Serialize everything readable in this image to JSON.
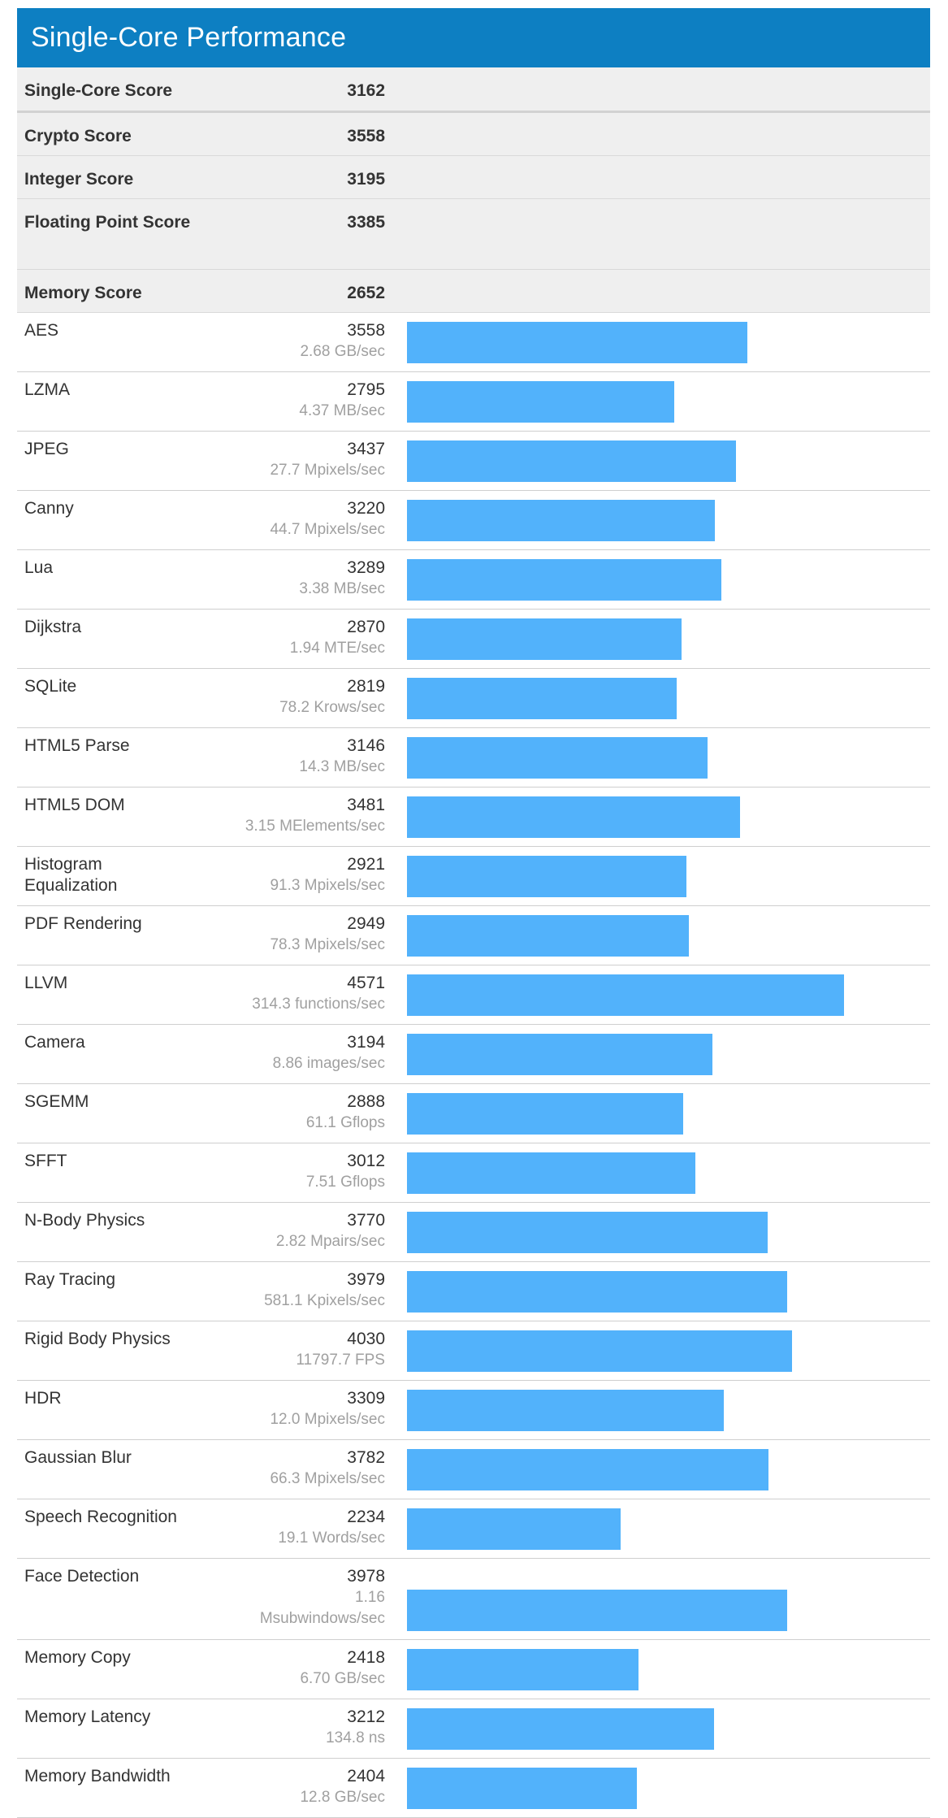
{
  "title": "Single-Core Performance",
  "colors": {
    "header_bg": "#0d7fc2",
    "bar": "#52b2fb",
    "summary_bg": "#efefef"
  },
  "bar_scale_max_score": 7000,
  "summary": [
    {
      "label": "Single-Core Score",
      "score": "3162"
    },
    {
      "label": "Crypto Score",
      "score": "3558"
    },
    {
      "label": "Integer Score",
      "score": "3195"
    },
    {
      "label": "Floating Point Score",
      "score": "3385"
    },
    {
      "label": "Memory Score",
      "score": "2652"
    }
  ],
  "benchmarks": [
    {
      "name": "AES",
      "score": "3558",
      "rate": "2.68 GB/sec"
    },
    {
      "name": "LZMA",
      "score": "2795",
      "rate": "4.37 MB/sec"
    },
    {
      "name": "JPEG",
      "score": "3437",
      "rate": "27.7 Mpixels/sec"
    },
    {
      "name": "Canny",
      "score": "3220",
      "rate": "44.7 Mpixels/sec"
    },
    {
      "name": "Lua",
      "score": "3289",
      "rate": "3.38 MB/sec"
    },
    {
      "name": "Dijkstra",
      "score": "2870",
      "rate": "1.94 MTE/sec"
    },
    {
      "name": "SQLite",
      "score": "2819",
      "rate": "78.2 Krows/sec"
    },
    {
      "name": "HTML5 Parse",
      "score": "3146",
      "rate": "14.3 MB/sec"
    },
    {
      "name": "HTML5 DOM",
      "score": "3481",
      "rate": "3.15 MElements/sec"
    },
    {
      "name": "Histogram Equalization",
      "score": "2921",
      "rate": "91.3 Mpixels/sec"
    },
    {
      "name": "PDF Rendering",
      "score": "2949",
      "rate": "78.3 Mpixels/sec"
    },
    {
      "name": "LLVM",
      "score": "4571",
      "rate": "314.3 functions/sec"
    },
    {
      "name": "Camera",
      "score": "3194",
      "rate": "8.86 images/sec"
    },
    {
      "name": "SGEMM",
      "score": "2888",
      "rate": "61.1 Gflops"
    },
    {
      "name": "SFFT",
      "score": "3012",
      "rate": "7.51 Gflops"
    },
    {
      "name": "N-Body Physics",
      "score": "3770",
      "rate": "2.82 Mpairs/sec"
    },
    {
      "name": "Ray Tracing",
      "score": "3979",
      "rate": "581.1 Kpixels/sec"
    },
    {
      "name": "Rigid Body Physics",
      "score": "4030",
      "rate": "11797.7 FPS"
    },
    {
      "name": "HDR",
      "score": "3309",
      "rate": "12.0 Mpixels/sec"
    },
    {
      "name": "Gaussian Blur",
      "score": "3782",
      "rate": "66.3 Mpixels/sec"
    },
    {
      "name": "Speech Recognition",
      "score": "2234",
      "rate": "19.1 Words/sec"
    },
    {
      "name": "Face Detection",
      "score": "3978",
      "rate": "1.16 Msubwindows/sec"
    },
    {
      "name": "Memory Copy",
      "score": "2418",
      "rate": "6.70 GB/sec"
    },
    {
      "name": "Memory Latency",
      "score": "3212",
      "rate": "134.8 ns"
    },
    {
      "name": "Memory Bandwidth",
      "score": "2404",
      "rate": "12.8 GB/sec"
    }
  ]
}
